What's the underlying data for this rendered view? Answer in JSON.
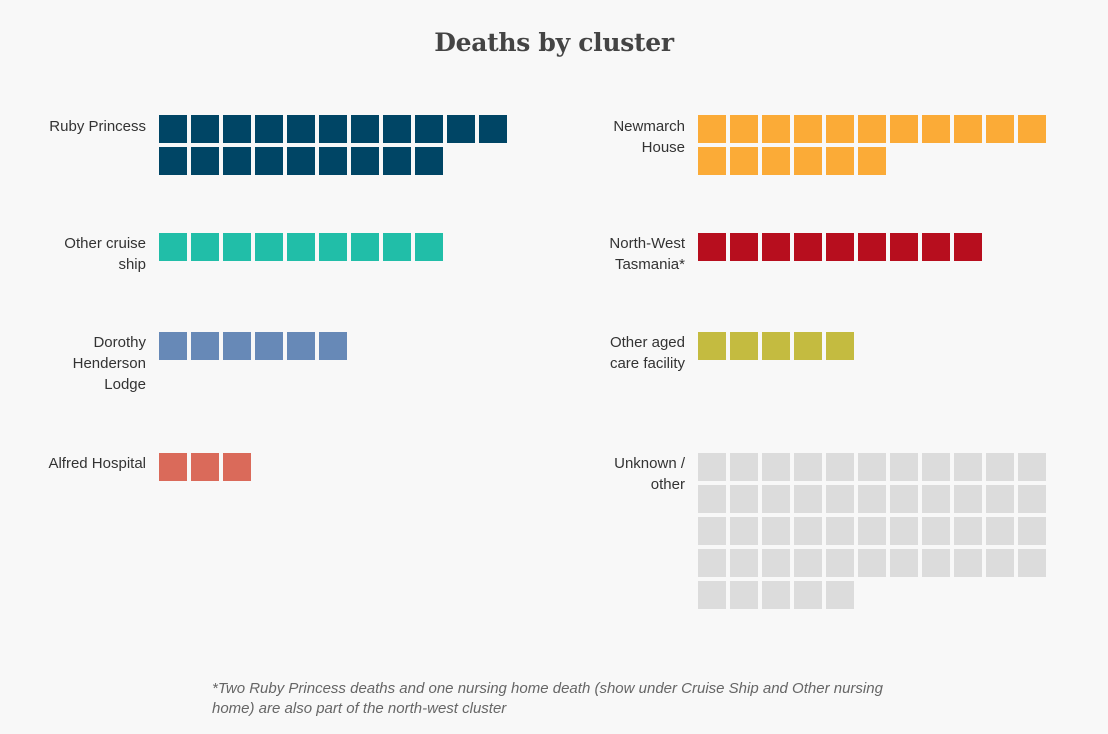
{
  "chart_data": {
    "type": "waffle",
    "title": "Deaths by cluster",
    "unit": "deaths",
    "columns": 11,
    "groups": [
      {
        "label": "Ruby Princess",
        "value": 20,
        "color": "#004565"
      },
      {
        "label": "Other cruise ship",
        "value": 9,
        "color": "#21bea8"
      },
      {
        "label": "Dorothy Henderson Lodge",
        "value": 6,
        "color": "#6789b7"
      },
      {
        "label": "Alfred Hospital",
        "value": 3,
        "color": "#da6a5a"
      },
      {
        "label": "Newmarch House",
        "value": 17,
        "color": "#fbab37"
      },
      {
        "label": "North-West Tasmania*",
        "value": 9,
        "color": "#b70e1e"
      },
      {
        "label": "Other aged care facility",
        "value": 5,
        "color": "#c4bb40"
      },
      {
        "label": "Unknown / other",
        "value": 49,
        "color": "#dcdcdc"
      }
    ],
    "footnote": "*Two Ruby Princess deaths and one nursing home death (show under Cruise Ship and Other nursing home) are also part of the north-west cluster"
  }
}
